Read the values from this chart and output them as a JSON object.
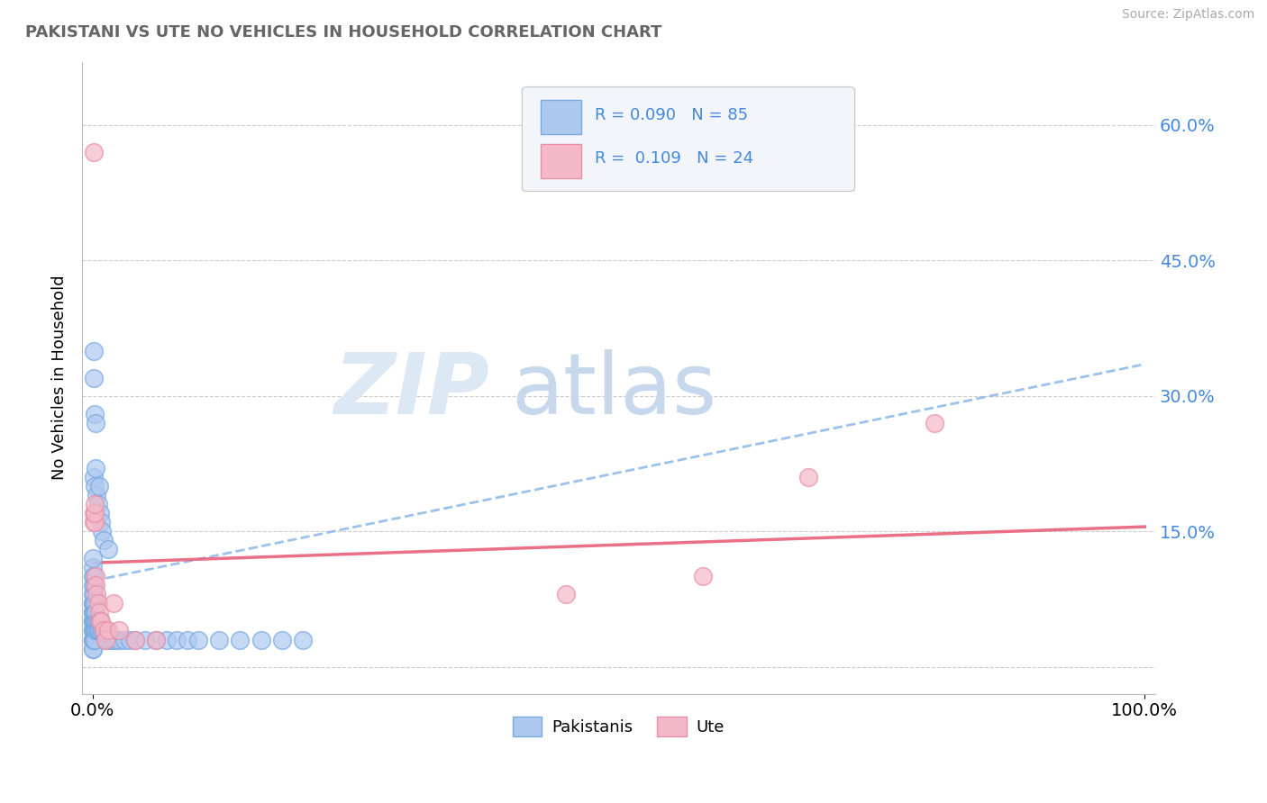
{
  "title": "PAKISTANI VS UTE NO VEHICLES IN HOUSEHOLD CORRELATION CHART",
  "source": "Source: ZipAtlas.com",
  "ylabel": "No Vehicles in Household",
  "xlim": [
    -0.01,
    1.01
  ],
  "ylim": [
    -0.03,
    0.67
  ],
  "ytick_vals": [
    0.0,
    0.15,
    0.3,
    0.45,
    0.6
  ],
  "ytick_labels": [
    "",
    "15.0%",
    "30.0%",
    "45.0%",
    "60.0%"
  ],
  "blue_fill": "#AEC9F0",
  "blue_edge": "#7AAAE0",
  "pink_fill": "#F5B8C8",
  "pink_edge": "#E890A8",
  "trendline_blue": "#8BB8E8",
  "trendline_pink": "#E8607A",
  "grid_color": "#CCCCCC",
  "axis_color": "#BBBBBB",
  "label_color": "#4488DD",
  "title_color": "#666666",
  "source_color": "#AAAAAA",
  "watermark_zip_color": "#DDE8F5",
  "watermark_atlas_color": "#C8D8EC",
  "blue_trend_x": [
    0.0,
    1.0
  ],
  "blue_trend_y": [
    0.095,
    0.335
  ],
  "pink_trend_x": [
    0.0,
    1.0
  ],
  "pink_trend_y": [
    0.115,
    0.155
  ],
  "pak_x": [
    0.0,
    0.0,
    0.0,
    0.0,
    0.0,
    0.0,
    0.0,
    0.0,
    0.0,
    0.0,
    0.0,
    0.0,
    0.0,
    0.0,
    0.0,
    0.0,
    0.0,
    0.0,
    0.0,
    0.0,
    0.001,
    0.001,
    0.001,
    0.001,
    0.001,
    0.001,
    0.001,
    0.001,
    0.002,
    0.002,
    0.002,
    0.002,
    0.002,
    0.003,
    0.003,
    0.003,
    0.004,
    0.004,
    0.005,
    0.005,
    0.006,
    0.006,
    0.007,
    0.008,
    0.009,
    0.01,
    0.011,
    0.012,
    0.013,
    0.015,
    0.017,
    0.02,
    0.022,
    0.025,
    0.03,
    0.035,
    0.04,
    0.05,
    0.06,
    0.07,
    0.08,
    0.09,
    0.1,
    0.12,
    0.14,
    0.16,
    0.18,
    0.2,
    0.001,
    0.001,
    0.002,
    0.003,
    0.001,
    0.002,
    0.003,
    0.004,
    0.005,
    0.006,
    0.007,
    0.008,
    0.009,
    0.01,
    0.015
  ],
  "pak_y": [
    0.03,
    0.04,
    0.05,
    0.06,
    0.07,
    0.08,
    0.09,
    0.1,
    0.11,
    0.12,
    0.03,
    0.04,
    0.05,
    0.06,
    0.07,
    0.02,
    0.03,
    0.04,
    0.05,
    0.02,
    0.04,
    0.05,
    0.06,
    0.07,
    0.08,
    0.09,
    0.1,
    0.03,
    0.04,
    0.05,
    0.06,
    0.07,
    0.03,
    0.04,
    0.05,
    0.06,
    0.05,
    0.04,
    0.04,
    0.05,
    0.05,
    0.04,
    0.05,
    0.04,
    0.04,
    0.04,
    0.04,
    0.03,
    0.04,
    0.03,
    0.03,
    0.03,
    0.03,
    0.03,
    0.03,
    0.03,
    0.03,
    0.03,
    0.03,
    0.03,
    0.03,
    0.03,
    0.03,
    0.03,
    0.03,
    0.03,
    0.03,
    0.03,
    0.35,
    0.32,
    0.28,
    0.27,
    0.21,
    0.2,
    0.22,
    0.19,
    0.18,
    0.2,
    0.17,
    0.16,
    0.15,
    0.14,
    0.13
  ],
  "ute_x": [
    0.001,
    0.001,
    0.001,
    0.002,
    0.002,
    0.002,
    0.003,
    0.003,
    0.004,
    0.005,
    0.006,
    0.007,
    0.008,
    0.01,
    0.012,
    0.015,
    0.02,
    0.025,
    0.04,
    0.06,
    0.45,
    0.58,
    0.68,
    0.8
  ],
  "ute_y": [
    0.57,
    0.16,
    0.17,
    0.16,
    0.17,
    0.18,
    0.1,
    0.09,
    0.08,
    0.07,
    0.06,
    0.05,
    0.05,
    0.04,
    0.03,
    0.04,
    0.07,
    0.04,
    0.03,
    0.03,
    0.08,
    0.1,
    0.21,
    0.27
  ]
}
